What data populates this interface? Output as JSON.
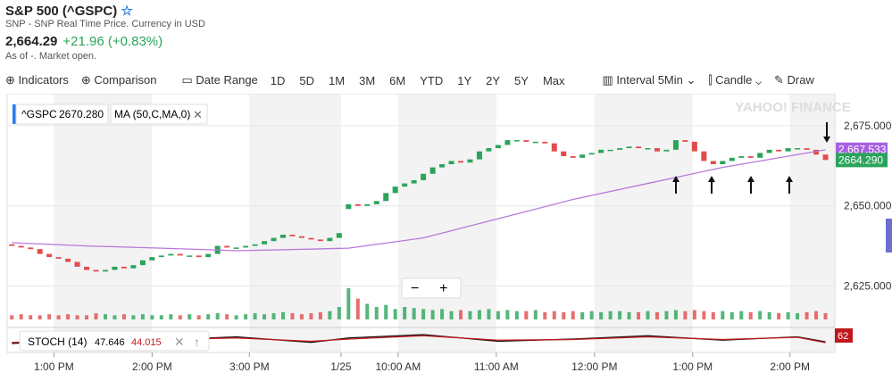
{
  "header": {
    "title": "S&P 500 (^GSPC)",
    "subtitle": "SNP - SNP Real Time Price. Currency in USD",
    "price": "2,664.29",
    "change": "+21.96 (+0.83%)",
    "asof": "As of -. Market open."
  },
  "toolbar": {
    "indicators": "Indicators",
    "comparison": "Comparison",
    "date_range": "Date Range",
    "ranges": [
      "1D",
      "5D",
      "1M",
      "3M",
      "6M",
      "YTD",
      "1Y",
      "2Y",
      "5Y",
      "Max"
    ],
    "interval": "Interval",
    "interval_value": "5Min",
    "chart_style": "Candle",
    "draw": "Draw"
  },
  "chart_data": {
    "type": "candlestick",
    "legend": {
      "symbol": "^GSPC",
      "symbol_value": "2670.280",
      "ma": "MA (50,C,MA,0)"
    },
    "watermark": "YAHOO! FINANCE",
    "open": [
      2638,
      2637.5,
      2637,
      2636.5,
      2635,
      2634,
      2633.5,
      2632.5,
      2631,
      2630,
      2629.5,
      2630,
      2631,
      2630.5,
      2631.5,
      2633,
      2634,
      2634.5,
      2635,
      2634.5,
      2634.5,
      2634,
      2635,
      2637.5,
      2637,
      2637,
      2637.5,
      2638,
      2639,
      2640,
      2641,
      2640.5,
      2640,
      2639.5,
      2639,
      2640,
      2649,
      2650.5,
      2650,
      2650.5,
      2651.5,
      2654,
      2656,
      2657,
      2658,
      2660,
      2662,
      2663,
      2664,
      2663.5,
      2664.5,
      2667,
      2668,
      2669,
      2670.5,
      2670.5,
      2670,
      2670,
      2669.5,
      2667,
      2665.5,
      2665,
      2666,
      2666.5,
      2667.5,
      2667.5,
      2668,
      2668.5,
      2668,
      2668,
      2667,
      2667.5,
      2670.5,
      2670,
      2667,
      2664,
      2663,
      2664,
      2665,
      2665.5,
      2665,
      2666.5,
      2667.5,
      2667,
      2668,
      2668,
      2667.5,
      2666
    ],
    "close": [
      2637.5,
      2637,
      2636.5,
      2635,
      2634,
      2633.5,
      2632.5,
      2631,
      2630,
      2629.5,
      2630,
      2631,
      2630.5,
      2631.5,
      2633,
      2634,
      2634.5,
      2635,
      2634.5,
      2634.5,
      2634,
      2635,
      2637.5,
      2637,
      2637,
      2637.5,
      2638,
      2639,
      2640,
      2641,
      2640.5,
      2640,
      2639.5,
      2639,
      2640,
      2641.5,
      2650.5,
      2650,
      2650.5,
      2651.5,
      2654,
      2656,
      2657,
      2658,
      2660,
      2662,
      2663,
      2664,
      2663.5,
      2664.5,
      2667,
      2668,
      2669,
      2670.5,
      2670.5,
      2670,
      2670,
      2669.5,
      2667,
      2665.5,
      2665,
      2666,
      2666.5,
      2667.5,
      2667.5,
      2668,
      2668.5,
      2668,
      2668,
      2667,
      2667.5,
      2670.5,
      2670,
      2667,
      2664,
      2663,
      2664,
      2665,
      2665.5,
      2665,
      2666.5,
      2667.5,
      2667,
      2668,
      2668,
      2667.5,
      2666,
      2664.3
    ],
    "volume": [
      4,
      5,
      4,
      4,
      5,
      4,
      5,
      4,
      4,
      6,
      5,
      4,
      5,
      4,
      5,
      4,
      4,
      5,
      4,
      5,
      4,
      5,
      6,
      5,
      4,
      5,
      6,
      5,
      6,
      7,
      6,
      5,
      6,
      7,
      8,
      12,
      30,
      20,
      15,
      12,
      14,
      10,
      12,
      11,
      10,
      9,
      10,
      8,
      9,
      8,
      9,
      10,
      8,
      9,
      8,
      8,
      9,
      7,
      8,
      7,
      8,
      7,
      8,
      7,
      8,
      8,
      7,
      7,
      8,
      7,
      8,
      9,
      8,
      9,
      8,
      7,
      8,
      7,
      8,
      7,
      8,
      7,
      6,
      7,
      6,
      7,
      8,
      6
    ],
    "ma": {
      "name": "MA (50,C,MA,0)",
      "color": "#b67ad9",
      "x": [
        0,
        8,
        16,
        24,
        32,
        36,
        44,
        52,
        60,
        68,
        76,
        84,
        87
      ],
      "values": [
        2638.5,
        2637.5,
        2636.8,
        2636,
        2636.5,
        2636.8,
        2640,
        2646,
        2652,
        2657,
        2662,
        2666,
        2667.5
      ]
    },
    "stoch": {
      "name": "STOCH (14)",
      "k_value": "47.646",
      "d_value": "44.015",
      "badge": "62",
      "x": [
        0,
        8,
        16,
        24,
        32,
        36,
        44,
        52,
        60,
        68,
        76,
        84,
        87
      ],
      "k": [
        40,
        60,
        55,
        70,
        45,
        65,
        80,
        50,
        60,
        75,
        55,
        70,
        47.6
      ],
      "d": [
        45,
        55,
        58,
        65,
        50,
        60,
        75,
        55,
        58,
        70,
        58,
        68,
        44
      ]
    },
    "ylim": [
      2614,
      2685
    ],
    "yticks": [
      {
        "value": 2625,
        "label": "2,625.000"
      },
      {
        "value": 2650,
        "label": "2,650.000"
      },
      {
        "value": 2675,
        "label": "2,675.000"
      }
    ],
    "xlim": [
      -0.5,
      88
    ],
    "xticks": [
      {
        "value": 4.5,
        "label": "1:00 PM"
      },
      {
        "value": 15,
        "label": "2:00 PM"
      },
      {
        "value": 25.4,
        "label": "3:00 PM"
      },
      {
        "value": 35.2,
        "label": "1/25"
      },
      {
        "value": 41.3,
        "label": "10:00 AM"
      },
      {
        "value": 51.8,
        "label": "11:00 AM"
      },
      {
        "value": 62.3,
        "label": "12:00 PM"
      },
      {
        "value": 72.8,
        "label": "1:00 PM"
      },
      {
        "value": 83.2,
        "label": "2:00 PM"
      }
    ],
    "price_labels": [
      {
        "value": 2667.533,
        "label": "2,667.533",
        "color": "#a860e0"
      },
      {
        "value": 2664.29,
        "label": "2664.290",
        "color": "#2aa45a"
      }
    ],
    "up_color": "#2aa45a",
    "down_color": "#e24b4b"
  }
}
